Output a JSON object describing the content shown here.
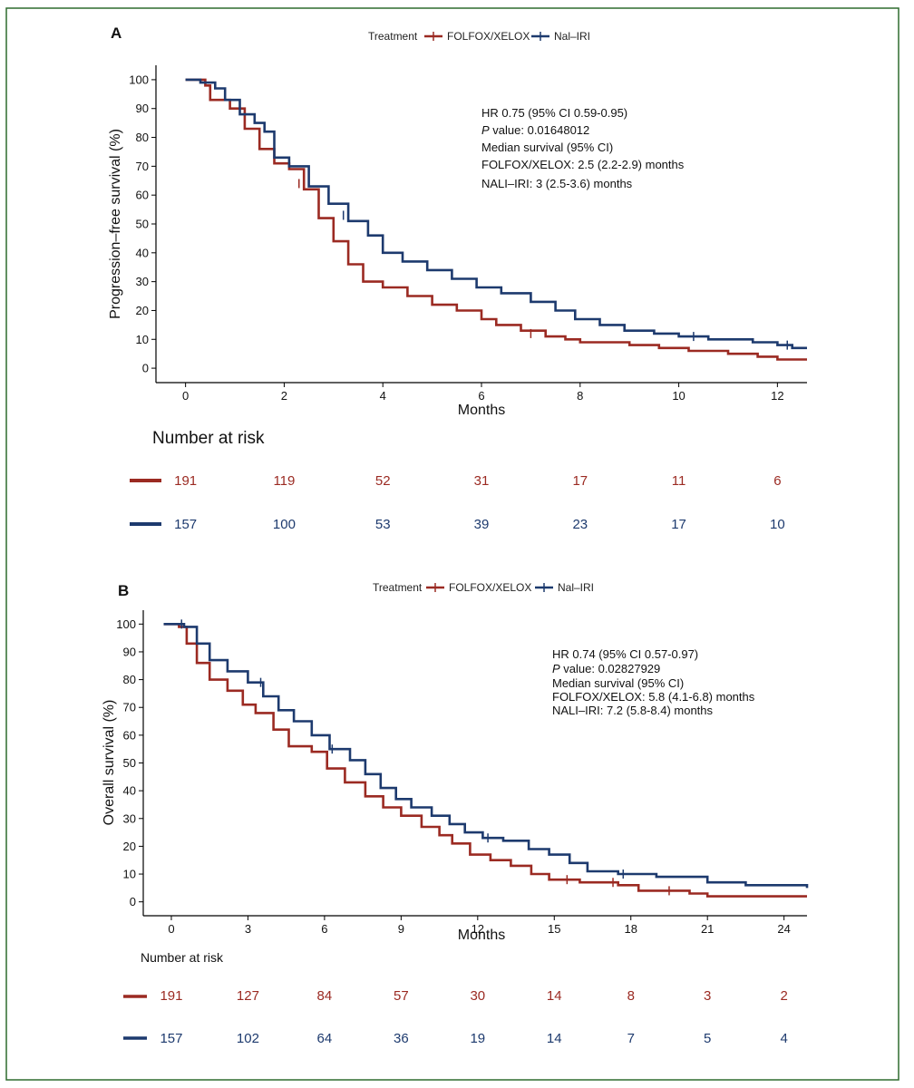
{
  "colors": {
    "folfox": "#9b2a22",
    "nalirI": "#1d3a6e",
    "frame": "#2f6b2f",
    "axis": "#000000",
    "text": "#222222"
  },
  "chart_data": [
    {
      "panel_label": "A",
      "type": "line",
      "subtype": "kaplan-meier",
      "legend": {
        "title": "Treatment",
        "placement": "top-center",
        "entries": [
          "FOLFOX/XELOX",
          "Nal–IRI"
        ]
      },
      "xlabel": "Months",
      "ylabel": "Progression–free survival (%)",
      "xlim": [
        -0.6,
        12.6
      ],
      "ylim": [
        -5,
        105
      ],
      "xticks": [
        0,
        2,
        4,
        6,
        8,
        10,
        12
      ],
      "yticks": [
        0,
        10,
        20,
        30,
        40,
        50,
        60,
        70,
        80,
        90,
        100
      ],
      "annotations": [
        {
          "prefix": "HR 0.75 (95% CI 0.59-0.95)",
          "italic": ""
        },
        {
          "prefix": " value: 0.01648012",
          "italic": "P"
        },
        {
          "prefix": "Median survival (95% CI)",
          "italic": ""
        },
        {
          "prefix": "FOLFOX/XELOX: 2.5 (2.2-2.9) months",
          "italic": ""
        },
        {
          "prefix": "NALI–IRI: 3 (2.5-3.6) months",
          "italic": ""
        }
      ],
      "series": [
        {
          "name": "FOLFOX/XELOX",
          "points": [
            [
              0,
              100
            ],
            [
              0.4,
              98
            ],
            [
              0.5,
              93
            ],
            [
              0.9,
              90
            ],
            [
              1.2,
              83
            ],
            [
              1.5,
              76
            ],
            [
              1.8,
              71
            ],
            [
              2.1,
              69
            ],
            [
              2.4,
              62
            ],
            [
              2.7,
              52
            ],
            [
              3.0,
              44
            ],
            [
              3.3,
              36
            ],
            [
              3.6,
              30
            ],
            [
              4.0,
              28
            ],
            [
              4.5,
              25
            ],
            [
              5.0,
              22
            ],
            [
              5.5,
              20
            ],
            [
              6.0,
              17
            ],
            [
              6.3,
              15
            ],
            [
              6.8,
              13
            ],
            [
              7.3,
              11
            ],
            [
              7.7,
              10
            ],
            [
              8.0,
              9
            ],
            [
              8.5,
              9
            ],
            [
              9.0,
              8
            ],
            [
              9.6,
              7
            ],
            [
              10.2,
              6
            ],
            [
              11.0,
              5
            ],
            [
              11.6,
              4
            ],
            [
              12.0,
              3
            ],
            [
              12.6,
              3
            ]
          ],
          "censors": [
            [
              2.3,
              64
            ],
            [
              7.0,
              12
            ]
          ]
        },
        {
          "name": "Nal–IRI",
          "points": [
            [
              0,
              100
            ],
            [
              0.3,
              99
            ],
            [
              0.6,
              97
            ],
            [
              0.8,
              93
            ],
            [
              1.1,
              88
            ],
            [
              1.4,
              85
            ],
            [
              1.6,
              82
            ],
            [
              1.8,
              73
            ],
            [
              2.1,
              70
            ],
            [
              2.5,
              63
            ],
            [
              2.9,
              57
            ],
            [
              3.3,
              51
            ],
            [
              3.7,
              46
            ],
            [
              4.0,
              40
            ],
            [
              4.4,
              37
            ],
            [
              4.9,
              34
            ],
            [
              5.4,
              31
            ],
            [
              5.9,
              28
            ],
            [
              6.4,
              26
            ],
            [
              7.0,
              23
            ],
            [
              7.5,
              20
            ],
            [
              7.9,
              17
            ],
            [
              8.4,
              15
            ],
            [
              8.9,
              13
            ],
            [
              9.5,
              12
            ],
            [
              10.0,
              11
            ],
            [
              10.6,
              10
            ],
            [
              11.0,
              10
            ],
            [
              11.5,
              9
            ],
            [
              12.0,
              8
            ],
            [
              12.3,
              7
            ],
            [
              12.6,
              7
            ]
          ],
          "censors": [
            [
              3.2,
              53
            ],
            [
              10.3,
              11
            ],
            [
              12.2,
              8
            ]
          ]
        }
      ],
      "risk_table": {
        "title": "Number at risk",
        "times": [
          0,
          2,
          4,
          6,
          8,
          10,
          12
        ],
        "rows": [
          {
            "name": "FOLFOX/XELOX",
            "values": [
              "191",
              "119",
              "52",
              "31",
              "17",
              "11",
              "6"
            ]
          },
          {
            "name": "Nal–IRI",
            "values": [
              "157",
              "100",
              "53",
              "39",
              "23",
              "17",
              "10"
            ]
          }
        ]
      }
    },
    {
      "panel_label": "B",
      "type": "line",
      "subtype": "kaplan-meier",
      "legend": {
        "title": "Treatment",
        "placement": "top-center",
        "entries": [
          "FOLFOX/XELOX",
          "Nal–IRI"
        ]
      },
      "xlabel": "Months",
      "ylabel": "Overall survival (%)",
      "xlim": [
        -1.1,
        24.9
      ],
      "ylim": [
        -5,
        105
      ],
      "xticks": [
        0,
        3,
        6,
        9,
        12,
        15,
        18,
        21,
        24
      ],
      "yticks": [
        0,
        10,
        20,
        30,
        40,
        50,
        60,
        70,
        80,
        90,
        100
      ],
      "annotations": [
        {
          "prefix": "HR 0.74 (95% CI 0.57-0.97)",
          "italic": ""
        },
        {
          "prefix": " value: 0.02827929",
          "italic": "P"
        },
        {
          "prefix": "Median survival (95% CI)",
          "italic": ""
        },
        {
          "prefix": "FOLFOX/XELOX: 5.8 (4.1-6.8) months",
          "italic": ""
        },
        {
          "prefix": "NALI–IRI: 7.2 (5.8-8.4) months",
          "italic": ""
        }
      ],
      "series": [
        {
          "name": "FOLFOX/XELOX",
          "points": [
            [
              -0.3,
              100
            ],
            [
              0.3,
              99
            ],
            [
              0.6,
              93
            ],
            [
              1.0,
              86
            ],
            [
              1.5,
              80
            ],
            [
              2.2,
              76
            ],
            [
              2.8,
              71
            ],
            [
              3.3,
              68
            ],
            [
              4.0,
              62
            ],
            [
              4.6,
              56
            ],
            [
              5.5,
              54
            ],
            [
              6.1,
              48
            ],
            [
              6.8,
              43
            ],
            [
              7.6,
              38
            ],
            [
              8.3,
              34
            ],
            [
              9.0,
              31
            ],
            [
              9.8,
              27
            ],
            [
              10.5,
              24
            ],
            [
              11.0,
              21
            ],
            [
              11.7,
              17
            ],
            [
              12.5,
              15
            ],
            [
              13.3,
              13
            ],
            [
              14.1,
              10
            ],
            [
              14.8,
              8
            ],
            [
              16.0,
              7
            ],
            [
              17.5,
              6
            ],
            [
              18.3,
              4
            ],
            [
              19.5,
              4
            ],
            [
              20.3,
              3
            ],
            [
              21.0,
              2
            ],
            [
              23.0,
              2
            ],
            [
              24.9,
              2
            ]
          ],
          "censors": [
            [
              15.5,
              8
            ],
            [
              17.3,
              7
            ],
            [
              19.5,
              4
            ]
          ]
        },
        {
          "name": "Nal–IRI",
          "points": [
            [
              -0.3,
              100
            ],
            [
              0.5,
              99
            ],
            [
              1.0,
              93
            ],
            [
              1.5,
              87
            ],
            [
              2.2,
              83
            ],
            [
              3.0,
              79
            ],
            [
              3.6,
              74
            ],
            [
              4.2,
              69
            ],
            [
              4.8,
              65
            ],
            [
              5.5,
              60
            ],
            [
              6.2,
              55
            ],
            [
              7.0,
              51
            ],
            [
              7.6,
              46
            ],
            [
              8.2,
              41
            ],
            [
              8.8,
              37
            ],
            [
              9.4,
              34
            ],
            [
              10.2,
              31
            ],
            [
              10.9,
              28
            ],
            [
              11.5,
              25
            ],
            [
              12.2,
              23
            ],
            [
              13.0,
              22
            ],
            [
              14.0,
              19
            ],
            [
              14.8,
              17
            ],
            [
              15.6,
              14
            ],
            [
              16.3,
              11
            ],
            [
              17.5,
              10
            ],
            [
              19.0,
              9
            ],
            [
              21.0,
              7
            ],
            [
              22.5,
              6
            ],
            [
              24.9,
              5
            ]
          ],
          "censors": [
            [
              0.4,
              100
            ],
            [
              3.5,
              79
            ],
            [
              6.3,
              55
            ],
            [
              12.4,
              23
            ],
            [
              17.7,
              10
            ]
          ]
        }
      ],
      "risk_table": {
        "title": "Number at risk",
        "times": [
          0,
          3,
          6,
          9,
          12,
          15,
          18,
          21,
          24
        ],
        "rows": [
          {
            "name": "FOLFOX/XELOX",
            "values": [
              "191",
              "127",
              "84",
              "57",
              "30",
              "14",
              "8",
              "3",
              "2"
            ]
          },
          {
            "name": "Nal–IRI",
            "values": [
              "157",
              "102",
              "64",
              "36",
              "19",
              "14",
              "7",
              "5",
              "4"
            ]
          }
        ]
      }
    }
  ]
}
